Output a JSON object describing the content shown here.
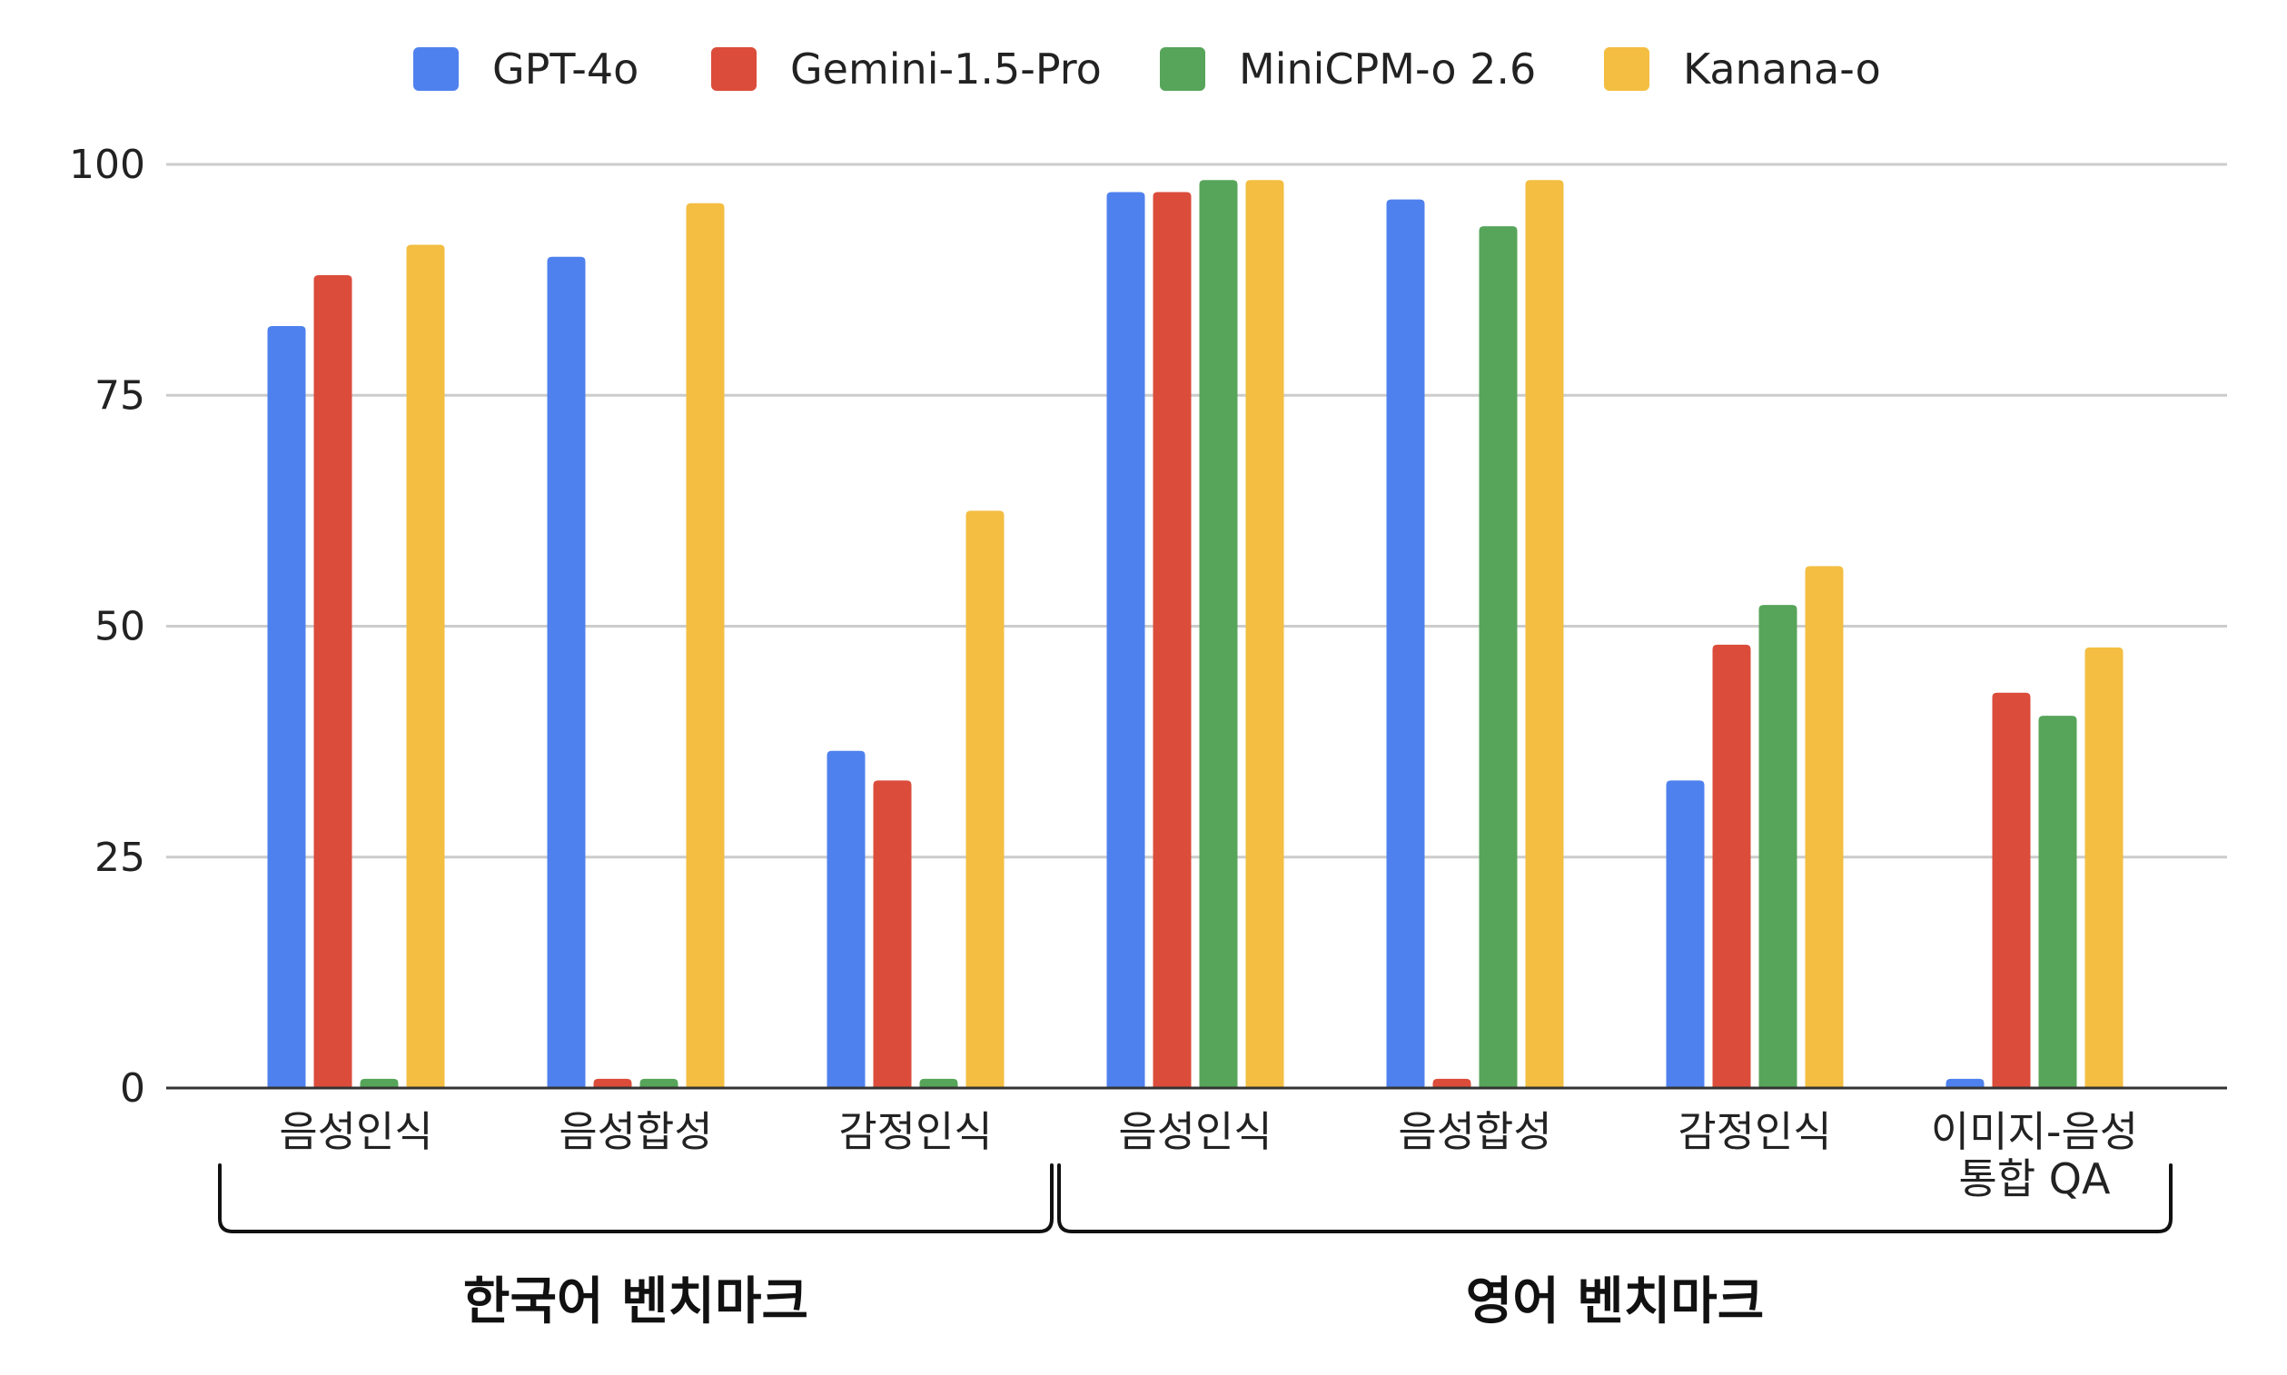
{
  "chart_data": {
    "type": "bar",
    "categories": [
      [
        "음성인식"
      ],
      [
        "음성합성"
      ],
      [
        "감정인식"
      ],
      [
        "음성인식"
      ],
      [
        "음성합성"
      ],
      [
        "감정인식"
      ],
      [
        "이미지-음성",
        "통합 QA"
      ]
    ],
    "series": [
      {
        "name": "GPT-4o",
        "color": "#4F81EE",
        "values": [
          82.5,
          90,
          36.5,
          97,
          96.2,
          33.3,
          1
        ]
      },
      {
        "name": "Gemini-1.5-Pro",
        "color": "#DB4C3B",
        "values": [
          88,
          1,
          33.3,
          97,
          1,
          48,
          42.8
        ]
      },
      {
        "name": "MiniCPM-o 2.6",
        "color": "#57A55A",
        "values": [
          1,
          1,
          1,
          98.3,
          93.3,
          52.3,
          40.3
        ]
      },
      {
        "name": "Kanana-o",
        "color": "#F3BE41",
        "values": [
          91.3,
          95.8,
          62.5,
          98.3,
          98.3,
          56.5,
          47.7
        ]
      }
    ],
    "ylim": [
      0,
      100
    ],
    "yticks": [
      0,
      25,
      50,
      75,
      100
    ],
    "grid": true,
    "legend_position": "top",
    "groups": [
      {
        "label": "한국어 벤치마크",
        "category_indices": [
          0,
          1,
          2
        ]
      },
      {
        "label": "영어 벤치마크",
        "category_indices": [
          3,
          4,
          5,
          6
        ]
      }
    ],
    "title": "",
    "xlabel": "",
    "ylabel": ""
  }
}
